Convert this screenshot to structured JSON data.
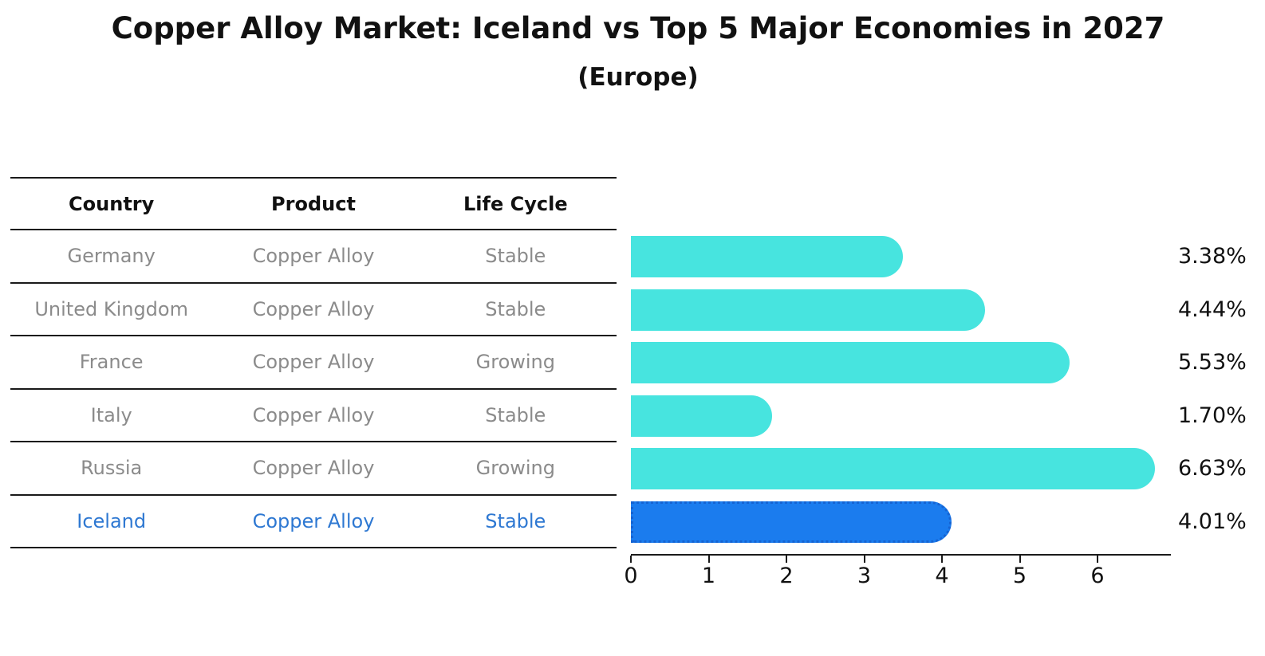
{
  "title": "Copper Alloy Market: Iceland vs Top 5 Major Economies in 2027",
  "subtitle": "(Europe)",
  "table": {
    "headers": [
      "Country",
      "Product",
      "Life Cycle"
    ],
    "rows": [
      {
        "country": "Germany",
        "product": "Copper Alloy",
        "life_cycle": "Stable",
        "highlight": false
      },
      {
        "country": "United Kingdom",
        "product": "Copper Alloy",
        "life_cycle": "Stable",
        "highlight": false
      },
      {
        "country": "France",
        "product": "Copper Alloy",
        "life_cycle": "Growing",
        "highlight": false
      },
      {
        "country": "Italy",
        "product": "Copper Alloy",
        "life_cycle": "Stable",
        "highlight": false
      },
      {
        "country": "Russia",
        "product": "Copper Alloy",
        "life_cycle": "Growing",
        "highlight": false
      },
      {
        "country": "Iceland",
        "product": "Copper Alloy",
        "life_cycle": "Stable",
        "highlight": true
      }
    ]
  },
  "chart_data": {
    "type": "bar",
    "orientation": "horizontal",
    "title": "Copper Alloy Market: Iceland vs Top 5 Major Economies in 2027",
    "subtitle": "(Europe)",
    "categories": [
      "Germany",
      "United Kingdom",
      "France",
      "Italy",
      "Russia",
      "Iceland"
    ],
    "values": [
      3.38,
      4.44,
      5.53,
      1.7,
      6.63,
      4.01
    ],
    "value_labels": [
      "3.38%",
      "4.44%",
      "5.53%",
      "1.70%",
      "6.63%",
      "4.01%"
    ],
    "unit": "%",
    "highlight_index": 5,
    "xlim": [
      0,
      6.94
    ],
    "xticks": [
      0,
      1,
      2,
      3,
      4,
      5,
      6
    ],
    "grid": false,
    "legend": false
  },
  "colors": {
    "bar": "#47E4DF",
    "highlight_bar": "#1B7CEE",
    "highlight_bar_border": "#1563D2",
    "table_text": "#8B8B8B",
    "header_text": "#111111",
    "highlight_text": "#2E78D2",
    "axis": "#1A1A1A"
  }
}
